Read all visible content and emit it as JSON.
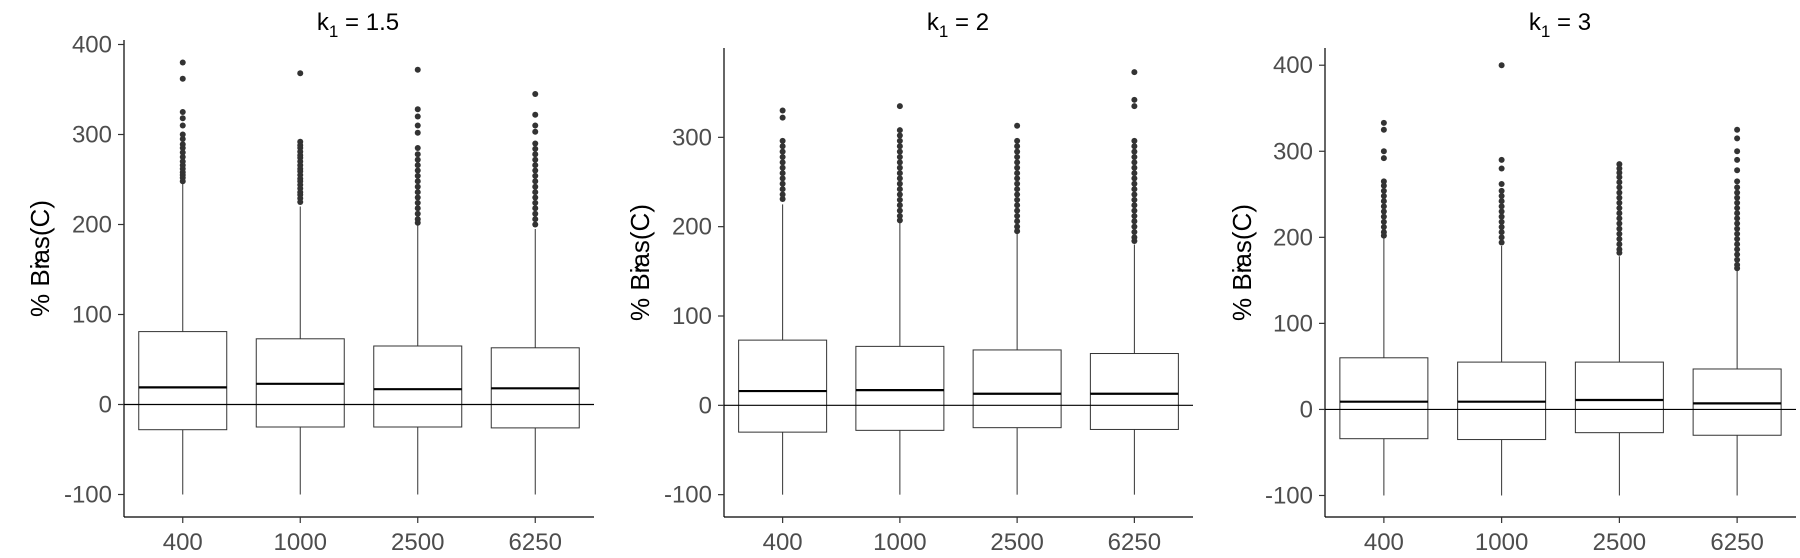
{
  "chart_data": [
    {
      "type": "box",
      "title_prefix": "k",
      "title_subscript": "1",
      "title_suffix": " = 1.5",
      "ylabel_prefix": "% Bias(",
      "ylabel_symbol": "C",
      "ylabel_suffix": ")",
      "categories": [
        "400",
        "1000",
        "2500",
        "6250"
      ],
      "ylim": [
        -125,
        405
      ],
      "yticks": [
        -100,
        0,
        100,
        200,
        300,
        400
      ],
      "ytick_labels": [
        "-100",
        "0",
        "100",
        "200",
        "300",
        "400"
      ],
      "reference_line": 0,
      "boxes": [
        {
          "min": -100,
          "q1": -28,
          "median": 19,
          "q3": 81,
          "max": 245,
          "outliers": [
            380,
            362,
            325,
            318,
            310,
            300,
            295,
            289,
            285,
            280,
            275,
            270,
            266,
            262,
            258,
            255,
            252,
            248
          ]
        },
        {
          "min": -100,
          "q1": -25,
          "median": 23,
          "q3": 73,
          "max": 220,
          "outliers": [
            368,
            292,
            288,
            285,
            281,
            277,
            274,
            270,
            266,
            262,
            259,
            255,
            251,
            248,
            244,
            240,
            236,
            233,
            229,
            225
          ]
        },
        {
          "min": -100,
          "q1": -25,
          "median": 17,
          "q3": 65,
          "max": 200,
          "outliers": [
            372,
            328,
            320,
            310,
            302,
            285,
            278,
            272,
            266,
            260,
            254,
            248,
            242,
            236,
            230,
            224,
            218,
            212,
            206,
            202
          ]
        },
        {
          "min": -100,
          "q1": -26,
          "median": 18,
          "q3": 63,
          "max": 195,
          "outliers": [
            345,
            322,
            310,
            303,
            290,
            284,
            278,
            272,
            266,
            260,
            254,
            248,
            242,
            236,
            230,
            224,
            218,
            212,
            206,
            200
          ]
        }
      ]
    },
    {
      "type": "box",
      "title_prefix": "k",
      "title_subscript": "1",
      "title_suffix": " = 2",
      "ylabel_prefix": "% Bias(",
      "ylabel_symbol": "C",
      "ylabel_suffix": ")",
      "categories": [
        "400",
        "1000",
        "2500",
        "6250"
      ],
      "ylim": [
        -125,
        400
      ],
      "yticks": [
        -100,
        0,
        100,
        200,
        300
      ],
      "ytick_labels": [
        "-100",
        "0",
        "100",
        "200",
        "300"
      ],
      "reference_line": 0,
      "boxes": [
        {
          "min": -100,
          "q1": -30,
          "median": 16,
          "q3": 73,
          "max": 225,
          "outliers": [
            330,
            322,
            296,
            290,
            284,
            278,
            272,
            266,
            260,
            254,
            248,
            242,
            236,
            231
          ]
        },
        {
          "min": -100,
          "q1": -28,
          "median": 17,
          "q3": 66,
          "max": 205,
          "outliers": [
            335,
            308,
            302,
            296,
            290,
            284,
            278,
            272,
            266,
            260,
            254,
            248,
            242,
            236,
            230,
            224,
            218,
            212,
            207
          ]
        },
        {
          "min": -100,
          "q1": -25,
          "median": 13,
          "q3": 62,
          "max": 192,
          "outliers": [
            313,
            296,
            290,
            284,
            278,
            272,
            266,
            260,
            254,
            248,
            242,
            236,
            230,
            224,
            218,
            212,
            206,
            200,
            195
          ]
        },
        {
          "min": -100,
          "q1": -27,
          "median": 13,
          "q3": 58,
          "max": 180,
          "outliers": [
            373,
            342,
            335,
            296,
            290,
            284,
            278,
            272,
            266,
            260,
            254,
            248,
            242,
            236,
            230,
            224,
            218,
            212,
            206,
            200,
            194,
            188,
            184
          ]
        }
      ]
    },
    {
      "type": "box",
      "title_prefix": "k",
      "title_subscript": "1",
      "title_suffix": " = 3",
      "ylabel_prefix": "% Bias(",
      "ylabel_symbol": "C",
      "ylabel_suffix": ")",
      "categories": [
        "400",
        "1000",
        "2500",
        "6250"
      ],
      "ylim": [
        -125,
        420
      ],
      "yticks": [
        -100,
        0,
        100,
        200,
        300,
        400
      ],
      "ytick_labels": [
        "-100",
        "0",
        "100",
        "200",
        "300",
        "400"
      ],
      "reference_line": 0,
      "boxes": [
        {
          "min": -100,
          "q1": -34,
          "median": 9,
          "q3": 60,
          "max": 200,
          "outliers": [
            333,
            325,
            300,
            292,
            265,
            260,
            254,
            248,
            242,
            236,
            230,
            224,
            218,
            212,
            206,
            202
          ]
        },
        {
          "min": -100,
          "q1": -35,
          "median": 9,
          "q3": 55,
          "max": 190,
          "outliers": [
            400,
            290,
            280,
            262,
            254,
            248,
            242,
            236,
            230,
            224,
            218,
            212,
            206,
            200,
            194
          ]
        },
        {
          "min": -100,
          "q1": -27,
          "median": 11,
          "q3": 55,
          "max": 178,
          "outliers": [
            285,
            280,
            275,
            270,
            264,
            258,
            252,
            246,
            240,
            234,
            228,
            222,
            216,
            210,
            204,
            198,
            192,
            186,
            182
          ]
        },
        {
          "min": -100,
          "q1": -30,
          "median": 7,
          "q3": 47,
          "max": 162,
          "outliers": [
            325,
            315,
            300,
            290,
            278,
            265,
            258,
            252,
            246,
            240,
            234,
            228,
            222,
            216,
            210,
            204,
            198,
            192,
            186,
            180,
            174,
            168,
            164
          ]
        }
      ]
    }
  ]
}
